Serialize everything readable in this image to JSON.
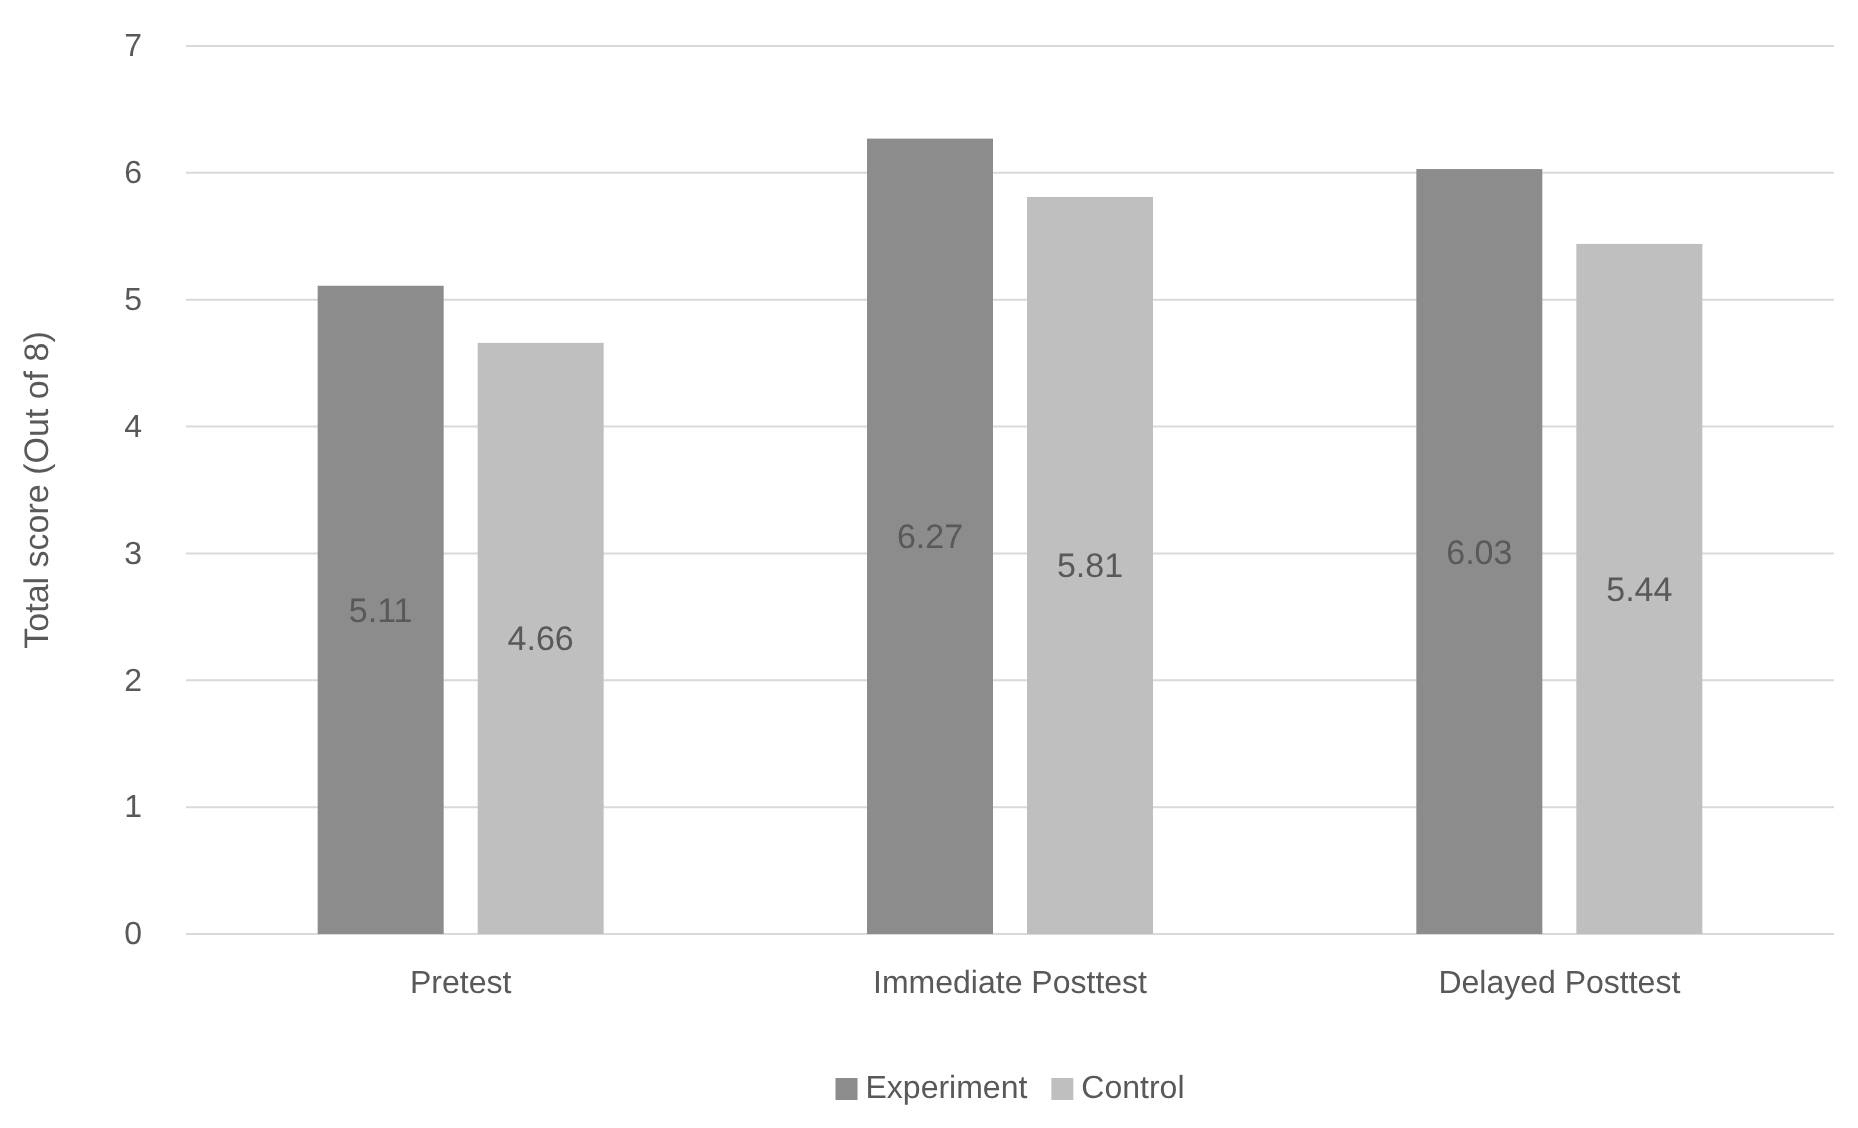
{
  "chart_data": {
    "type": "bar",
    "ylabel": "Total score (Out of 8)",
    "categories": [
      "Pretest",
      "Immediate Posttest",
      "Delayed Posttest"
    ],
    "series": [
      {
        "name": "Experiment",
        "color": "#8c8c8c",
        "values": [
          5.11,
          6.27,
          6.03
        ]
      },
      {
        "name": "Control",
        "color": "#bfbfbf",
        "values": [
          4.66,
          5.81,
          5.44
        ]
      }
    ],
    "ylim": [
      0,
      7
    ],
    "yticks": [
      0,
      1,
      2,
      3,
      4,
      5,
      6,
      7
    ],
    "grid": "y",
    "data_labels": true,
    "legend": "bottom"
  }
}
